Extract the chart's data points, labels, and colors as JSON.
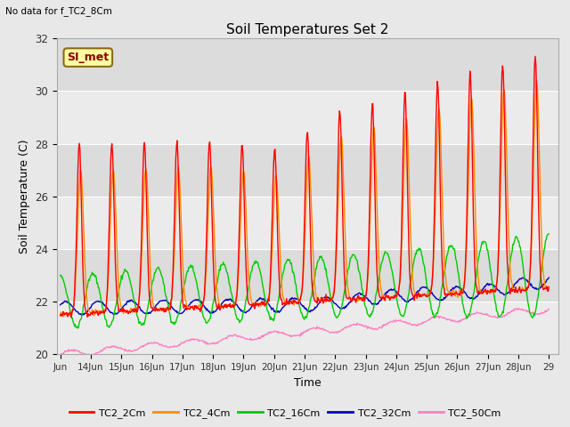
{
  "title": "Soil Temperatures Set 2",
  "subtitle": "No data for f_TC2_8Cm",
  "xlabel": "Time",
  "ylabel": "Soil Temperature (C)",
  "ylim": [
    20,
    32
  ],
  "yticks": [
    20,
    22,
    24,
    26,
    28,
    30,
    32
  ],
  "xtick_labels": [
    "Jun",
    "14Jun",
    "15Jun",
    "16Jun",
    "17Jun",
    "18Jun",
    "19Jun",
    "20Jun",
    "21Jun",
    "22Jun",
    "23Jun",
    "24Jun",
    "25Jun",
    "26Jun",
    "27Jun",
    "28Jun",
    "29"
  ],
  "series_colors": {
    "TC2_2Cm": "#FF0000",
    "TC2_4Cm": "#FF8C00",
    "TC2_16Cm": "#00CC00",
    "TC2_32Cm": "#0000BB",
    "TC2_50Cm": "#FF80C0"
  },
  "legend_label": "SI_met",
  "legend_bg": "#FFFFA0",
  "legend_border": "#8B6914",
  "bg_color": "#E8E8E8",
  "band_dark": "#DCDCDC",
  "band_light": "#EBEBEB",
  "grid_color": "#FFFFFF",
  "linewidth": 1.0,
  "figsize": [
    6.4,
    4.8
  ],
  "dpi": 100
}
